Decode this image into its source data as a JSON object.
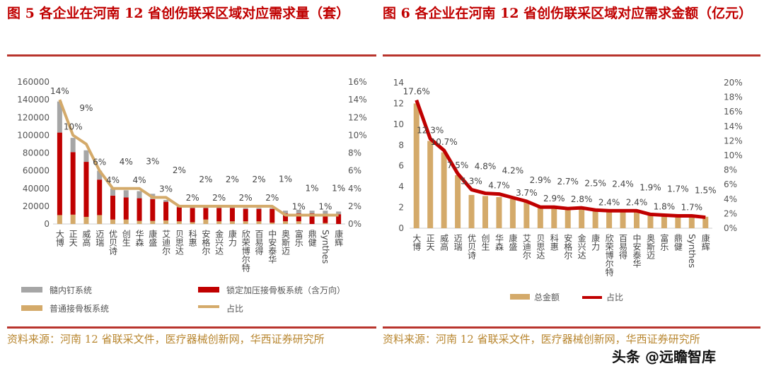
{
  "left": {
    "title": "图 5 各企业在河南 12 省创伤联采区域对应需求量（套）",
    "source": "资料来源：河南 12 省联采文件，医疗器械创新网，华西证券研究所"
  },
  "right": {
    "title": "图 6 各企业在河南 12 省创伤联采区域对应需求金额（亿元）",
    "source": "资料来源：河南 12 省联采文件，医疗器械创新网，华西证券研究所"
  },
  "watermark": "头条 @远瞻智库",
  "chart_data": [
    {
      "type": "bar",
      "stacked": true,
      "categories": [
        "大博",
        "正天",
        "威高",
        "迈瑞",
        "优贝诗",
        "创生",
        "华森",
        "康盛",
        "艾迪尔",
        "贝思达",
        "科惠",
        "安格尔",
        "金兴达",
        "康力",
        "欣荣博尔特",
        "百易得",
        "中安泰华",
        "奥斯迈",
        "富乐",
        "鼎健",
        "Synthes",
        "康辉"
      ],
      "series": [
        {
          "name": "普通接骨板系统",
          "kind": "bar",
          "color": "#d4aa6a",
          "values": [
            10000,
            10500,
            8000,
            10000,
            5000,
            5000,
            3500,
            3500,
            4000,
            3000,
            2000,
            5000,
            3000,
            3000,
            3000,
            3000,
            1500,
            3000,
            3000,
            0,
            1000,
            0
          ]
        },
        {
          "name": "锁定加压接骨板系统（含万向）",
          "kind": "bar",
          "color": "#c00000",
          "values": [
            93000,
            70500,
            62000,
            40000,
            27000,
            25000,
            25500,
            24500,
            21000,
            16000,
            16000,
            13000,
            15000,
            15000,
            14000,
            14000,
            15500,
            9000,
            9000,
            12000,
            10000,
            11000
          ]
        },
        {
          "name": "髓内钉系统",
          "kind": "bar",
          "color": "#a6a6a6",
          "values": [
            35000,
            16000,
            13000,
            10000,
            8000,
            8000,
            8000,
            6000,
            2000,
            1000,
            1000,
            1000,
            1000,
            1000,
            1000,
            1000,
            1000,
            3000,
            4000,
            3000,
            4000,
            3000
          ]
        },
        {
          "name": "占比",
          "kind": "line",
          "axis": "right",
          "color": "#d4aa6a",
          "values": [
            14,
            10,
            9,
            6,
            4,
            4,
            4,
            3,
            3,
            2,
            2,
            2,
            2,
            2,
            2,
            2,
            2,
            1,
            1,
            1,
            1,
            1
          ],
          "labels": [
            "14%",
            "10%",
            "9%",
            "6%",
            "4%",
            "4%",
            "4%",
            "3%",
            "3%",
            "2%",
            "2%",
            "2%",
            "2%",
            "2%",
            "2%",
            "2%",
            "2%",
            "1%",
            "1%",
            "1%",
            "1%",
            "1%"
          ]
        }
      ],
      "yleft": {
        "ticks": [
          "0",
          "20000",
          "40000",
          "60000",
          "80000",
          "100000",
          "120000",
          "140000",
          "160000"
        ],
        "range": [
          0,
          160000
        ]
      },
      "yright": {
        "ticks": [
          "0%",
          "2%",
          "4%",
          "6%",
          "8%",
          "10%",
          "12%",
          "14%",
          "16%"
        ],
        "range": [
          0,
          16
        ]
      },
      "legend": "bottom",
      "grid": false
    },
    {
      "type": "bar",
      "categories": [
        "大博",
        "正天",
        "威高",
        "迈瑞",
        "优贝诗",
        "创生",
        "华森",
        "康盛",
        "艾迪尔",
        "贝思达",
        "科惠",
        "安格尔",
        "金兴达",
        "康力",
        "欣荣博尔特",
        "百易得",
        "中安泰华",
        "奥斯迈",
        "富乐",
        "鼎健",
        "Synthes",
        "康辉"
      ],
      "series": [
        {
          "name": "总金额",
          "kind": "bar",
          "color": "#d4aa6a",
          "values": [
            12.0,
            8.4,
            7.3,
            5.1,
            3.2,
            3.1,
            3.0,
            2.8,
            2.5,
            2.0,
            1.9,
            1.9,
            1.8,
            1.8,
            1.7,
            1.6,
            1.7,
            1.3,
            1.3,
            1.2,
            1.2,
            1.1
          ]
        },
        {
          "name": "占比",
          "kind": "line",
          "axis": "right",
          "color": "#c00000",
          "values": [
            17.6,
            12.3,
            10.7,
            7.5,
            5.3,
            4.8,
            4.7,
            4.2,
            3.7,
            2.9,
            2.9,
            2.7,
            2.8,
            2.5,
            2.4,
            2.4,
            2.4,
            1.9,
            1.8,
            1.7,
            1.7,
            1.5
          ],
          "labels": [
            "17.6%",
            "12.3%",
            "10.7%",
            "7.5%",
            "5.3%",
            "4.8%",
            "4.7%",
            "4.2%",
            "3.7%",
            "2.9%",
            "2.9%",
            "2.7%",
            "2.8%",
            "2.5%",
            "2.4%",
            "2.4%",
            "2.4%",
            "1.9%",
            "1.8%",
            "1.7%",
            "1.7%",
            "1.5%"
          ]
        }
      ],
      "yleft": {
        "ticks": [
          "0",
          "2",
          "4",
          "6",
          "8",
          "10",
          "12",
          "14"
        ],
        "range": [
          0,
          14
        ]
      },
      "yright": {
        "ticks": [
          "0%",
          "2%",
          "4%",
          "6%",
          "8%",
          "10%",
          "12%",
          "14%",
          "16%",
          "18%",
          "20%"
        ],
        "range": [
          0,
          20
        ]
      },
      "legend": "bottom",
      "grid": false
    }
  ]
}
